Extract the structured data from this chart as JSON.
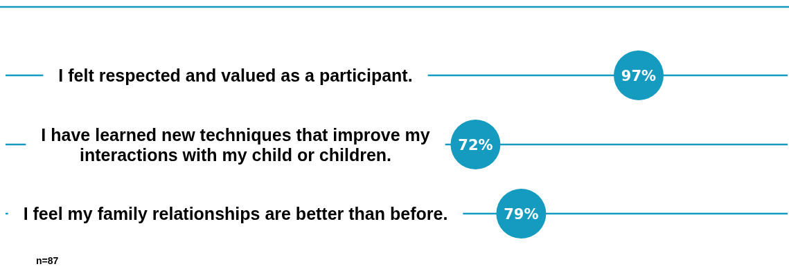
{
  "chart_data": {
    "type": "lollipop",
    "orientation": "horizontal",
    "categories": [
      "I felt respected and valued as a participant.",
      "I have learned new techniques that improve my interactions with my child or children.",
      "I feel my family relationships are better than before."
    ],
    "values": [
      97,
      72,
      79
    ],
    "value_labels": [
      "97%",
      "72%",
      "79%"
    ],
    "color": "#159bc0",
    "grid": "y",
    "annotations": [
      "n=87"
    ]
  }
}
